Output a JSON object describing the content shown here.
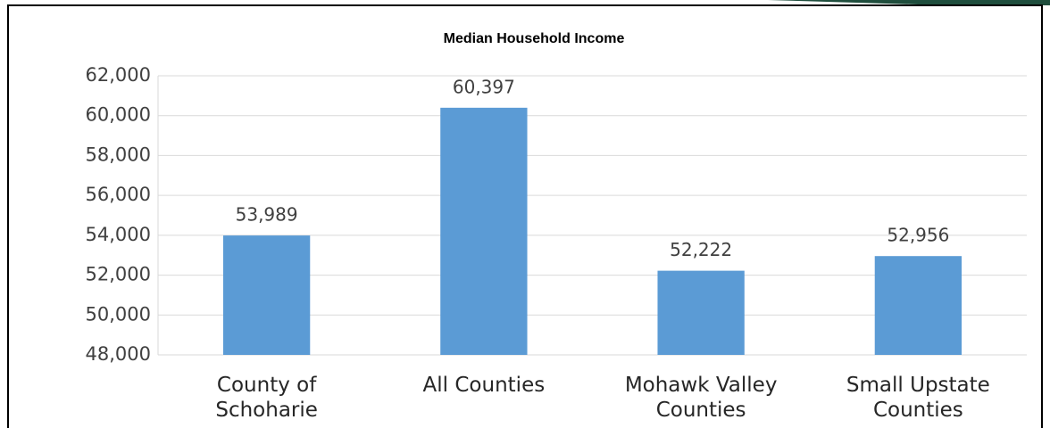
{
  "chart_data": {
    "type": "bar",
    "title": "Median Household Income",
    "categories": [
      "County of Schoharie",
      "All Counties",
      "Mohawk Valley Counties",
      "Small Upstate Counties"
    ],
    "values": [
      53989,
      60397,
      52222,
      52956
    ],
    "value_labels": [
      "53,989",
      "60,397",
      "52,222",
      "52,956"
    ],
    "color": "#5b9bd5",
    "ylim": [
      48000,
      62000
    ],
    "yticks": [
      {
        "value": 48000,
        "label": "48,000"
      },
      {
        "value": 50000,
        "label": "50,000"
      },
      {
        "value": 52000,
        "label": "52,000"
      },
      {
        "value": 54000,
        "label": "54,000"
      },
      {
        "value": 56000,
        "label": "56,000"
      },
      {
        "value": 58000,
        "label": "58,000"
      },
      {
        "value": 60000,
        "label": "60,000"
      },
      {
        "value": 62000,
        "label": "62,000"
      }
    ],
    "grid": true
  }
}
